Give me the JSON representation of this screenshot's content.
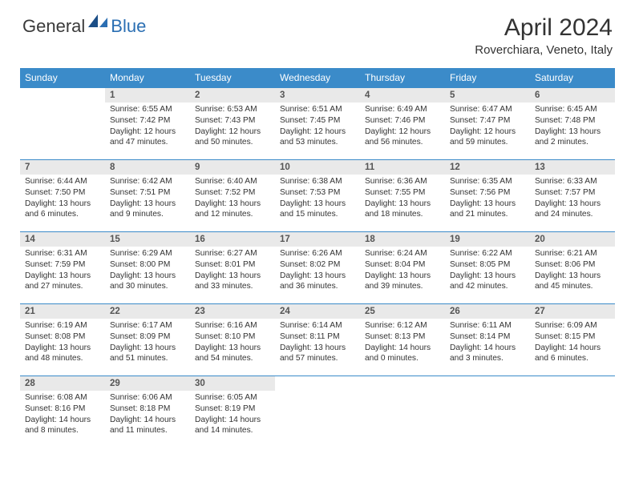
{
  "brand": {
    "part1": "General",
    "part2": "Blue"
  },
  "title": "April 2024",
  "location": "Roverchiara, Veneto, Italy",
  "colors": {
    "header_bg": "#3b8bc9",
    "daynum_bg": "#e9e9e9",
    "border": "#3b8bc9"
  },
  "weekdays": [
    "Sunday",
    "Monday",
    "Tuesday",
    "Wednesday",
    "Thursday",
    "Friday",
    "Saturday"
  ],
  "weeks": [
    [
      {
        "empty": true
      },
      {
        "num": "1",
        "sunrise": "Sunrise: 6:55 AM",
        "sunset": "Sunset: 7:42 PM",
        "daylight": "Daylight: 12 hours and 47 minutes."
      },
      {
        "num": "2",
        "sunrise": "Sunrise: 6:53 AM",
        "sunset": "Sunset: 7:43 PM",
        "daylight": "Daylight: 12 hours and 50 minutes."
      },
      {
        "num": "3",
        "sunrise": "Sunrise: 6:51 AM",
        "sunset": "Sunset: 7:45 PM",
        "daylight": "Daylight: 12 hours and 53 minutes."
      },
      {
        "num": "4",
        "sunrise": "Sunrise: 6:49 AM",
        "sunset": "Sunset: 7:46 PM",
        "daylight": "Daylight: 12 hours and 56 minutes."
      },
      {
        "num": "5",
        "sunrise": "Sunrise: 6:47 AM",
        "sunset": "Sunset: 7:47 PM",
        "daylight": "Daylight: 12 hours and 59 minutes."
      },
      {
        "num": "6",
        "sunrise": "Sunrise: 6:45 AM",
        "sunset": "Sunset: 7:48 PM",
        "daylight": "Daylight: 13 hours and 2 minutes."
      }
    ],
    [
      {
        "num": "7",
        "sunrise": "Sunrise: 6:44 AM",
        "sunset": "Sunset: 7:50 PM",
        "daylight": "Daylight: 13 hours and 6 minutes."
      },
      {
        "num": "8",
        "sunrise": "Sunrise: 6:42 AM",
        "sunset": "Sunset: 7:51 PM",
        "daylight": "Daylight: 13 hours and 9 minutes."
      },
      {
        "num": "9",
        "sunrise": "Sunrise: 6:40 AM",
        "sunset": "Sunset: 7:52 PM",
        "daylight": "Daylight: 13 hours and 12 minutes."
      },
      {
        "num": "10",
        "sunrise": "Sunrise: 6:38 AM",
        "sunset": "Sunset: 7:53 PM",
        "daylight": "Daylight: 13 hours and 15 minutes."
      },
      {
        "num": "11",
        "sunrise": "Sunrise: 6:36 AM",
        "sunset": "Sunset: 7:55 PM",
        "daylight": "Daylight: 13 hours and 18 minutes."
      },
      {
        "num": "12",
        "sunrise": "Sunrise: 6:35 AM",
        "sunset": "Sunset: 7:56 PM",
        "daylight": "Daylight: 13 hours and 21 minutes."
      },
      {
        "num": "13",
        "sunrise": "Sunrise: 6:33 AM",
        "sunset": "Sunset: 7:57 PM",
        "daylight": "Daylight: 13 hours and 24 minutes."
      }
    ],
    [
      {
        "num": "14",
        "sunrise": "Sunrise: 6:31 AM",
        "sunset": "Sunset: 7:59 PM",
        "daylight": "Daylight: 13 hours and 27 minutes."
      },
      {
        "num": "15",
        "sunrise": "Sunrise: 6:29 AM",
        "sunset": "Sunset: 8:00 PM",
        "daylight": "Daylight: 13 hours and 30 minutes."
      },
      {
        "num": "16",
        "sunrise": "Sunrise: 6:27 AM",
        "sunset": "Sunset: 8:01 PM",
        "daylight": "Daylight: 13 hours and 33 minutes."
      },
      {
        "num": "17",
        "sunrise": "Sunrise: 6:26 AM",
        "sunset": "Sunset: 8:02 PM",
        "daylight": "Daylight: 13 hours and 36 minutes."
      },
      {
        "num": "18",
        "sunrise": "Sunrise: 6:24 AM",
        "sunset": "Sunset: 8:04 PM",
        "daylight": "Daylight: 13 hours and 39 minutes."
      },
      {
        "num": "19",
        "sunrise": "Sunrise: 6:22 AM",
        "sunset": "Sunset: 8:05 PM",
        "daylight": "Daylight: 13 hours and 42 minutes."
      },
      {
        "num": "20",
        "sunrise": "Sunrise: 6:21 AM",
        "sunset": "Sunset: 8:06 PM",
        "daylight": "Daylight: 13 hours and 45 minutes."
      }
    ],
    [
      {
        "num": "21",
        "sunrise": "Sunrise: 6:19 AM",
        "sunset": "Sunset: 8:08 PM",
        "daylight": "Daylight: 13 hours and 48 minutes."
      },
      {
        "num": "22",
        "sunrise": "Sunrise: 6:17 AM",
        "sunset": "Sunset: 8:09 PM",
        "daylight": "Daylight: 13 hours and 51 minutes."
      },
      {
        "num": "23",
        "sunrise": "Sunrise: 6:16 AM",
        "sunset": "Sunset: 8:10 PM",
        "daylight": "Daylight: 13 hours and 54 minutes."
      },
      {
        "num": "24",
        "sunrise": "Sunrise: 6:14 AM",
        "sunset": "Sunset: 8:11 PM",
        "daylight": "Daylight: 13 hours and 57 minutes."
      },
      {
        "num": "25",
        "sunrise": "Sunrise: 6:12 AM",
        "sunset": "Sunset: 8:13 PM",
        "daylight": "Daylight: 14 hours and 0 minutes."
      },
      {
        "num": "26",
        "sunrise": "Sunrise: 6:11 AM",
        "sunset": "Sunset: 8:14 PM",
        "daylight": "Daylight: 14 hours and 3 minutes."
      },
      {
        "num": "27",
        "sunrise": "Sunrise: 6:09 AM",
        "sunset": "Sunset: 8:15 PM",
        "daylight": "Daylight: 14 hours and 6 minutes."
      }
    ],
    [
      {
        "num": "28",
        "sunrise": "Sunrise: 6:08 AM",
        "sunset": "Sunset: 8:16 PM",
        "daylight": "Daylight: 14 hours and 8 minutes."
      },
      {
        "num": "29",
        "sunrise": "Sunrise: 6:06 AM",
        "sunset": "Sunset: 8:18 PM",
        "daylight": "Daylight: 14 hours and 11 minutes."
      },
      {
        "num": "30",
        "sunrise": "Sunrise: 6:05 AM",
        "sunset": "Sunset: 8:19 PM",
        "daylight": "Daylight: 14 hours and 14 minutes."
      },
      {
        "empty": true
      },
      {
        "empty": true
      },
      {
        "empty": true
      },
      {
        "empty": true
      }
    ]
  ]
}
